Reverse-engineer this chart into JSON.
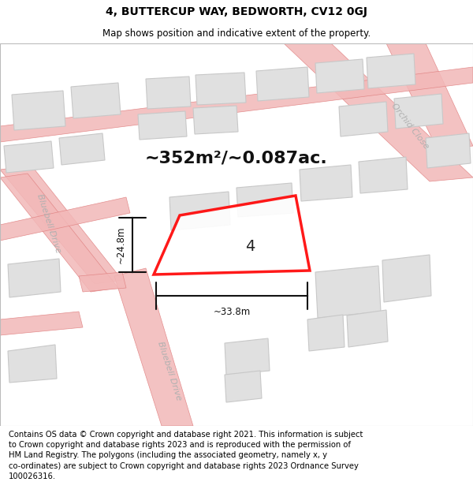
{
  "title": "4, BUTTERCUP WAY, BEDWORTH, CV12 0GJ",
  "subtitle": "Map shows position and indicative extent of the property.",
  "area_text": "~352m²/~0.087ac.",
  "width_label": "~33.8m",
  "height_label": "~24.8m",
  "plot_number": "4",
  "footer_lines": [
    "Contains OS data © Crown copyright and database right 2021. This information is subject to Crown copyright and database rights 2023 and is reproduced with the permission of",
    "HM Land Registry. The polygons (including the associated geometry, namely x, y",
    "co-ordinates) are subject to Crown copyright and database rights 2023 Ordnance Survey",
    "100026316."
  ],
  "background_color": "#ffffff",
  "map_bg_color": "#f5f5f5",
  "road_fill_color": "#f2b8b8",
  "road_edge_color": "#e08080",
  "building_color": "#e0e0e0",
  "building_edge_color": "#c8c8c8",
  "highlight_color": "#ff0000",
  "title_fontsize": 10,
  "subtitle_fontsize": 8.5,
  "area_fontsize": 16,
  "footer_fontsize": 7.2,
  "label_fontsize": 8.5,
  "plot_label_fontsize": 14,
  "road_label_color": "#b0b0b0",
  "dim_line_color": "#111111"
}
